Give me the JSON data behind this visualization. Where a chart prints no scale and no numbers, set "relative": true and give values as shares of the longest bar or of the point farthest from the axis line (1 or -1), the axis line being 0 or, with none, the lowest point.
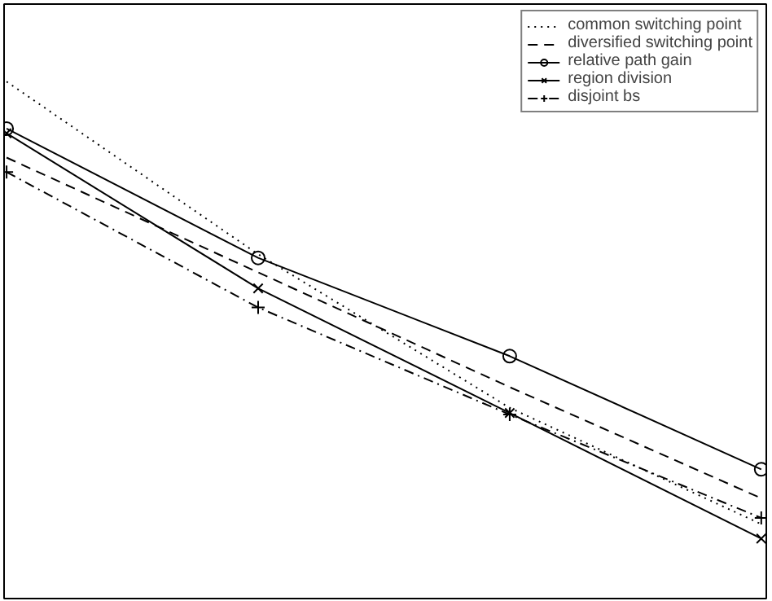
{
  "chart_data": {
    "type": "line",
    "relative": true,
    "categories": [
      null,
      null,
      null,
      null
    ],
    "legend": "top right",
    "series": [
      {
        "name": "common switching point",
        "color": "#000000",
        "line_style": "dotted",
        "marker": "none",
        "values": [
          1,
          0.666,
          0.369,
          0.144
        ]
      },
      {
        "name": "diversified switching point",
        "color": "#000000",
        "line_style": "dashed",
        "marker": "none",
        "values": [
          0.853,
          0.631,
          0.409,
          0.194
        ]
      },
      {
        "name": "relative path gain",
        "color": "#000000",
        "line_style": "solid",
        "marker": "circle",
        "values": [
          0.909,
          0.659,
          0.469,
          0.25
        ]
      },
      {
        "name": "region division",
        "color": "#000000",
        "line_style": "solid",
        "marker": "x",
        "values": [
          0.9,
          0.6,
          0.359,
          0.116
        ]
      },
      {
        "name": "disjoint bs",
        "color": "#000000",
        "line_style": "dashdot",
        "marker": "cross",
        "values": [
          0.825,
          0.563,
          0.356,
          0.156
        ]
      }
    ]
  }
}
